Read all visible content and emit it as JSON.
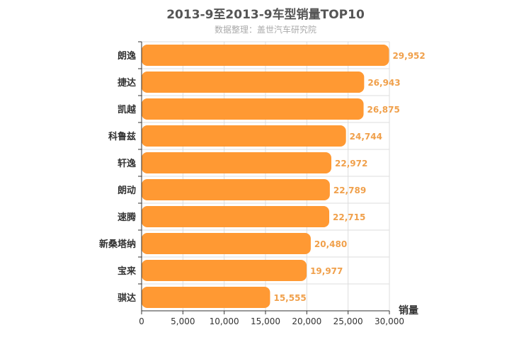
{
  "chart_data": {
    "type": "bar",
    "orientation": "horizontal",
    "title": "2013-9至2013-9车型销量TOP10",
    "subtitle": "数据整理：盖世汽车研究院",
    "ylabel": "销量",
    "categories": [
      "朗逸",
      "捷达",
      "凯越",
      "科鲁兹",
      "轩逸",
      "朗动",
      "速腾",
      "新桑塔纳",
      "宝来",
      "骐达"
    ],
    "values": [
      29952,
      26943,
      26875,
      24744,
      22972,
      22789,
      22715,
      20480,
      19977,
      15555
    ],
    "value_labels": [
      "29,952",
      "26,943",
      "26,875",
      "24,744",
      "22,972",
      "22,789",
      "22,715",
      "20,480",
      "19,977",
      "15,555"
    ],
    "xlim": [
      0,
      30000
    ],
    "xticks": [
      "0",
      "5,000",
      "10,000",
      "15,000",
      "20,000",
      "25,000",
      "30,000"
    ],
    "grid": true,
    "colors": {
      "bar": "#ff9933",
      "value_label": "#f0a04b",
      "grid": "#dddddd"
    }
  }
}
